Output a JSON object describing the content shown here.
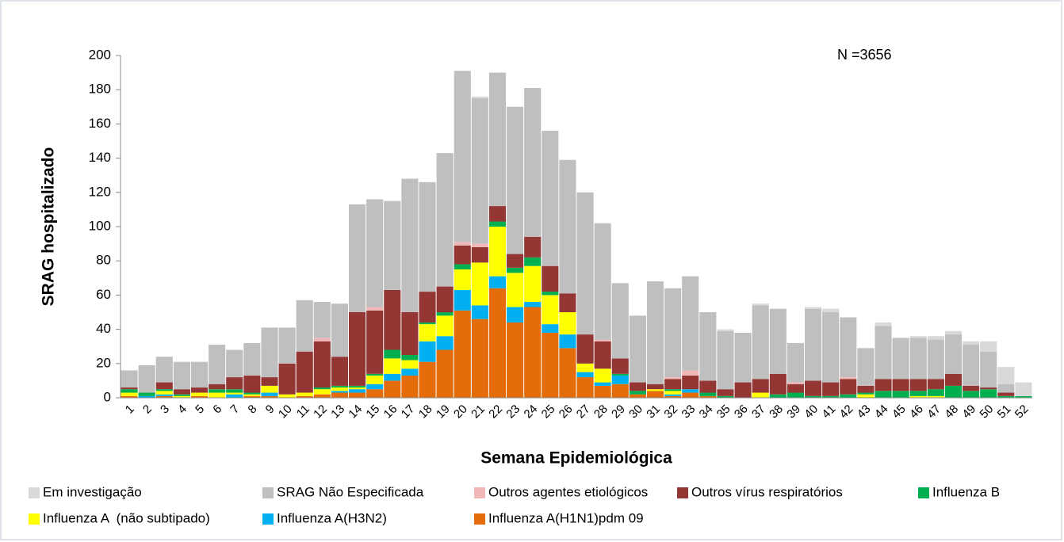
{
  "chart_data": {
    "type": "stacked-bar",
    "annotation": "N =3656",
    "x_label": "Semana Epidemiológica",
    "y_label": "SRAG hospitalizado",
    "categories": [
      "1",
      "2",
      "3",
      "4",
      "5",
      "6",
      "7",
      "8",
      "9",
      "10",
      "11",
      "12",
      "13",
      "14",
      "15",
      "16",
      "17",
      "18",
      "19",
      "20",
      "21",
      "22",
      "23",
      "24",
      "25",
      "26",
      "27",
      "28",
      "29",
      "30",
      "31",
      "32",
      "33",
      "34",
      "35",
      "36",
      "37",
      "38",
      "39",
      "40",
      "41",
      "42",
      "43",
      "44",
      "45",
      "46",
      "47",
      "48",
      "49",
      "50",
      "51",
      "52"
    ],
    "ylim": [
      0,
      200
    ],
    "yticks": [
      0,
      20,
      40,
      60,
      80,
      100,
      120,
      140,
      160,
      180,
      200
    ],
    "series": [
      {
        "name": "Em investigação",
        "color": "#d9d9d9",
        "values": [
          0,
          0,
          0,
          0,
          0,
          0,
          0,
          0,
          0,
          0,
          0,
          0,
          0,
          0,
          0,
          0,
          0,
          0,
          0,
          0,
          1,
          0,
          0,
          0,
          0,
          0,
          0,
          0,
          0,
          0,
          0,
          0,
          0,
          0,
          1,
          0,
          1,
          0,
          0,
          1,
          2,
          0,
          0,
          2,
          0,
          1,
          2,
          2,
          2,
          6,
          10,
          8
        ]
      },
      {
        "name": "SRAG Não Especificada",
        "color": "#bfbfbf",
        "values": [
          10,
          16,
          15,
          16,
          15,
          23,
          16,
          19,
          29,
          21,
          30,
          21,
          31,
          63,
          63,
          52,
          78,
          64,
          78,
          100,
          85,
          78,
          86,
          87,
          79,
          78,
          83,
          68,
          44,
          39,
          60,
          52,
          55,
          40,
          34,
          29,
          43,
          38,
          23,
          42,
          41,
          35,
          22,
          31,
          24,
          24,
          23,
          23,
          24,
          21,
          5,
          0
        ]
      },
      {
        "name": "Outros agentes etiológicos",
        "color": "#f2b8b8",
        "values": [
          0,
          0,
          0,
          0,
          0,
          0,
          0,
          0,
          0,
          0,
          0,
          2,
          0,
          0,
          2,
          0,
          0,
          0,
          0,
          2,
          2,
          0,
          0,
          0,
          0,
          0,
          0,
          1,
          0,
          0,
          0,
          1,
          3,
          0,
          0,
          0,
          0,
          0,
          1,
          0,
          0,
          1,
          0,
          0,
          0,
          0,
          0,
          0,
          0,
          0,
          0,
          0
        ]
      },
      {
        "name": "Outros vírus respiratórios",
        "color": "#943634",
        "values": [
          1,
          0,
          4,
          3,
          3,
          3,
          7,
          10,
          5,
          18,
          24,
          27,
          17,
          43,
          37,
          35,
          25,
          18,
          15,
          11,
          9,
          9,
          8,
          12,
          15,
          11,
          17,
          16,
          9,
          5,
          3,
          6,
          8,
          7,
          4,
          9,
          8,
          12,
          5,
          9,
          8,
          9,
          4,
          7,
          7,
          7,
          6,
          7,
          3,
          1,
          2,
          0
        ]
      },
      {
        "name": "Influenza B",
        "color": "#00b050",
        "values": [
          2,
          2,
          1,
          1,
          0,
          2,
          2,
          1,
          0,
          0,
          0,
          1,
          1,
          1,
          1,
          5,
          3,
          1,
          2,
          3,
          0,
          3,
          3,
          5,
          2,
          0,
          0,
          0,
          1,
          2,
          0,
          1,
          0,
          2,
          1,
          0,
          0,
          2,
          3,
          1,
          1,
          2,
          1,
          4,
          4,
          3,
          4,
          7,
          4,
          5,
          1,
          1
        ]
      },
      {
        "name": "Influenza A  (não subtipado)",
        "color": "#ffff00",
        "values": [
          2,
          0,
          2,
          1,
          2,
          3,
          1,
          1,
          4,
          2,
          2,
          3,
          2,
          1,
          5,
          9,
          5,
          10,
          12,
          12,
          25,
          29,
          20,
          21,
          17,
          13,
          5,
          8,
          0,
          0,
          1,
          2,
          0,
          0,
          0,
          0,
          3,
          0,
          0,
          0,
          0,
          0,
          2,
          0,
          0,
          1,
          1,
          0,
          0,
          0,
          0,
          0
        ]
      },
      {
        "name": "Influenza A(H3N2)",
        "color": "#00b0f0",
        "values": [
          0,
          1,
          1,
          0,
          0,
          0,
          2,
          0,
          2,
          0,
          0,
          0,
          1,
          2,
          3,
          4,
          4,
          12,
          8,
          12,
          8,
          7,
          9,
          3,
          5,
          8,
          3,
          2,
          5,
          0,
          0,
          1,
          2,
          0,
          0,
          0,
          0,
          0,
          0,
          0,
          0,
          0,
          0,
          0,
          0,
          0,
          0,
          0,
          0,
          0,
          0,
          0
        ]
      },
      {
        "name": "Influenza A(H1N1)pdm 09",
        "color": "#e46c0a",
        "values": [
          1,
          0,
          1,
          0,
          1,
          0,
          0,
          1,
          1,
          0,
          1,
          2,
          3,
          3,
          5,
          10,
          13,
          21,
          28,
          51,
          46,
          64,
          44,
          53,
          38,
          29,
          12,
          7,
          8,
          2,
          4,
          1,
          3,
          1,
          0,
          0,
          0,
          0,
          0,
          0,
          0,
          0,
          0,
          0,
          0,
          0,
          0,
          0,
          0,
          0,
          0,
          0
        ]
      }
    ]
  }
}
